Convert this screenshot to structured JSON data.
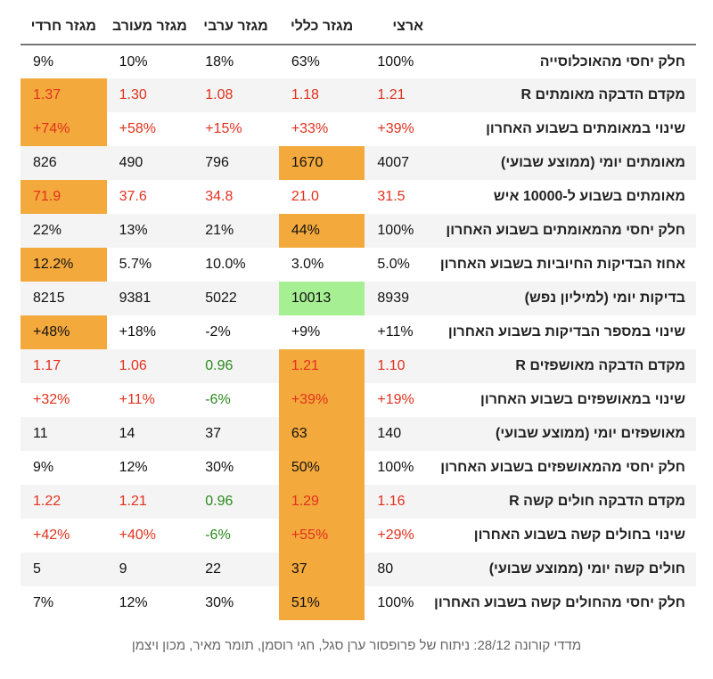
{
  "table": {
    "corner": "",
    "headers": [
      "ארצי",
      "מגזר כללי",
      "מגזר ערבי",
      "מגזר מעורב",
      "מגזר חרדי"
    ],
    "rows": [
      {
        "label": "חלק יחסי מהאוכלוסייה",
        "cells": [
          {
            "v": "100%"
          },
          {
            "v": "63%"
          },
          {
            "v": "18%"
          },
          {
            "v": "10%"
          },
          {
            "v": "9%"
          }
        ]
      },
      {
        "label": "מקדם הדבקה מאומתים R",
        "cells": [
          {
            "v": "1.21",
            "c": "red"
          },
          {
            "v": "1.18",
            "c": "red"
          },
          {
            "v": "1.08",
            "c": "red"
          },
          {
            "v": "1.30",
            "c": "red"
          },
          {
            "v": "1.37",
            "c": "red",
            "h": "orange"
          }
        ]
      },
      {
        "label": "שינוי במאומתים בשבוע האחרון",
        "cells": [
          {
            "v": "+39%",
            "c": "red"
          },
          {
            "v": "+33%",
            "c": "red"
          },
          {
            "v": "+15%",
            "c": "red"
          },
          {
            "v": "+58%",
            "c": "red"
          },
          {
            "v": "+74%",
            "c": "red",
            "h": "orange"
          }
        ]
      },
      {
        "label": "מאומתים יומי (ממוצע שבועי)",
        "cells": [
          {
            "v": "4007"
          },
          {
            "v": "1670",
            "h": "orange"
          },
          {
            "v": "796"
          },
          {
            "v": "490"
          },
          {
            "v": "826"
          }
        ]
      },
      {
        "label": "מאומתים בשבוע ל-10000 איש",
        "cells": [
          {
            "v": "31.5",
            "c": "red"
          },
          {
            "v": "21.0",
            "c": "red"
          },
          {
            "v": "34.8",
            "c": "red"
          },
          {
            "v": "37.6",
            "c": "red"
          },
          {
            "v": "71.9",
            "c": "red",
            "h": "orange"
          }
        ]
      },
      {
        "label": "חלק יחסי מהמאומתים בשבוע האחרון",
        "cells": [
          {
            "v": "100%"
          },
          {
            "v": "44%",
            "h": "orange"
          },
          {
            "v": "21%"
          },
          {
            "v": "13%"
          },
          {
            "v": "22%"
          }
        ]
      },
      {
        "label": "אחוז הבדיקות החיוביות בשבוע האחרון",
        "cells": [
          {
            "v": "5.0%"
          },
          {
            "v": "3.0%"
          },
          {
            "v": "10.0%"
          },
          {
            "v": "5.7%"
          },
          {
            "v": "12.2%",
            "h": "orange"
          }
        ]
      },
      {
        "label": "בדיקות יומי (למיליון נפש)",
        "cells": [
          {
            "v": "8939"
          },
          {
            "v": "10013",
            "h": "green"
          },
          {
            "v": "5022"
          },
          {
            "v": "9381"
          },
          {
            "v": "8215"
          }
        ]
      },
      {
        "label": "שינוי במספר הבדיקות בשבוע האחרון",
        "cells": [
          {
            "v": "+11%"
          },
          {
            "v": "+9%"
          },
          {
            "v": "-2%"
          },
          {
            "v": "+18%"
          },
          {
            "v": "+48%",
            "h": "orange"
          }
        ]
      },
      {
        "label": "מקדם הדבקה מאושפזים R",
        "cells": [
          {
            "v": "1.10",
            "c": "red"
          },
          {
            "v": "1.21",
            "c": "red",
            "h": "orange"
          },
          {
            "v": "0.96",
            "c": "green"
          },
          {
            "v": "1.06",
            "c": "red"
          },
          {
            "v": "1.17",
            "c": "red"
          }
        ]
      },
      {
        "label": "שינוי במאושפזים בשבוע האחרון",
        "cells": [
          {
            "v": "+19%",
            "c": "red"
          },
          {
            "v": "+39%",
            "c": "red",
            "h": "orange"
          },
          {
            "v": "-6%",
            "c": "green"
          },
          {
            "v": "+11%",
            "c": "red"
          },
          {
            "v": "+32%",
            "c": "red"
          }
        ]
      },
      {
        "label": "מאושפזים יומי (ממוצע שבועי)",
        "cells": [
          {
            "v": "140"
          },
          {
            "v": "63",
            "h": "orange"
          },
          {
            "v": "37"
          },
          {
            "v": "14"
          },
          {
            "v": "11"
          }
        ]
      },
      {
        "label": "חלק יחסי מהמאושפזים בשבוע האחרון",
        "cells": [
          {
            "v": "100%"
          },
          {
            "v": "50%",
            "h": "orange"
          },
          {
            "v": "30%"
          },
          {
            "v": "12%"
          },
          {
            "v": "9%"
          }
        ]
      },
      {
        "label": "מקדם הדבקה חולים קשה R",
        "cells": [
          {
            "v": "1.16",
            "c": "red"
          },
          {
            "v": "1.29",
            "c": "red",
            "h": "orange"
          },
          {
            "v": "0.96",
            "c": "green"
          },
          {
            "v": "1.21",
            "c": "red"
          },
          {
            "v": "1.22",
            "c": "red"
          }
        ]
      },
      {
        "label": "שינוי בחולים קשה בשבוע האחרון",
        "cells": [
          {
            "v": "+29%",
            "c": "red"
          },
          {
            "v": "+55%",
            "c": "red",
            "h": "orange"
          },
          {
            "v": "-6%",
            "c": "green"
          },
          {
            "v": "+40%",
            "c": "red"
          },
          {
            "v": "+42%",
            "c": "red"
          }
        ]
      },
      {
        "label": "חולים קשה יומי (ממוצע שבועי)",
        "cells": [
          {
            "v": "80"
          },
          {
            "v": "37",
            "h": "orange"
          },
          {
            "v": "22"
          },
          {
            "v": "9"
          },
          {
            "v": "5"
          }
        ]
      },
      {
        "label": "חלק יחסי מהחולים קשה בשבוע האחרון",
        "cells": [
          {
            "v": "100%"
          },
          {
            "v": "51%",
            "h": "orange"
          },
          {
            "v": "30%"
          },
          {
            "v": "12%"
          },
          {
            "v": "7%"
          }
        ]
      }
    ]
  },
  "caption": "מדדי קורונה 28/12: ניתוח של פרופסור ערן סגל, חגי רוסמן, תומר מאיר, מכון ויצמן",
  "colors": {
    "highlight_orange": "#f4a93c",
    "highlight_green": "#a6ef93",
    "increase_red": "#e1311d",
    "decrease_green": "#2a8a1c"
  }
}
